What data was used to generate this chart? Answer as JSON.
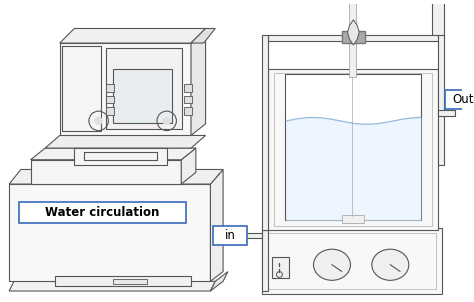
{
  "bg_color": "#ffffff",
  "lc": "#555555",
  "lc_light": "#aaaaaa",
  "bc": "#3a6abf",
  "fc_main": "#ffffff",
  "fc_side": "#f0f0f0",
  "label_water": "Water circulation",
  "label_in": "in",
  "label_out": "Out",
  "figsize": [
    4.74,
    3.02
  ],
  "dpi": 100
}
